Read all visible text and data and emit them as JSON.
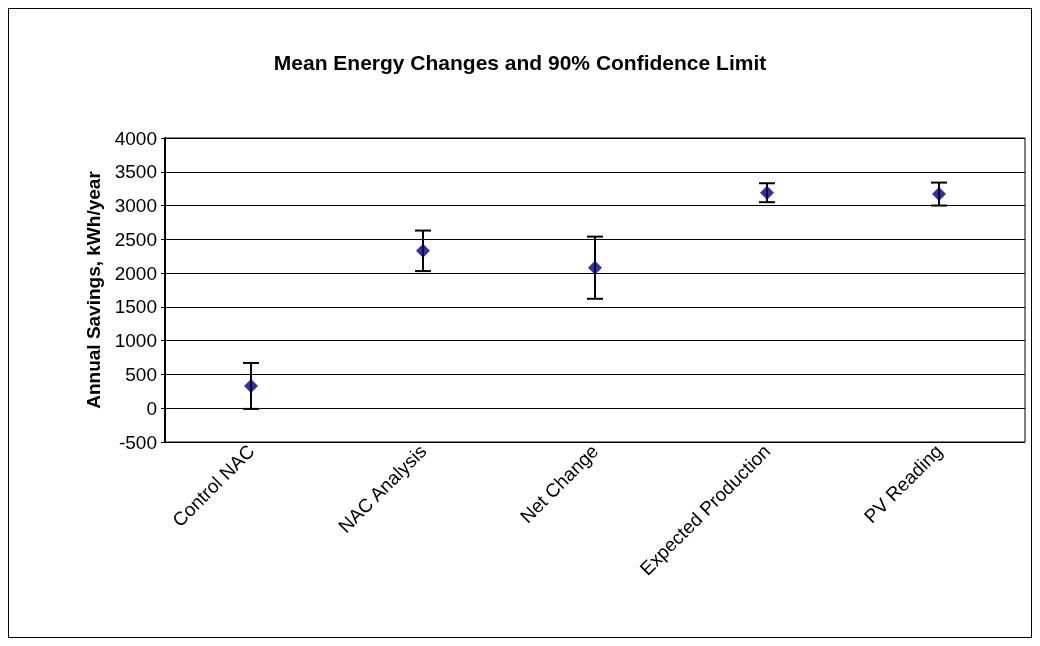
{
  "chart_data": {
    "type": "scatter",
    "title": "Mean Energy Changes and 90% Confidence Limit",
    "ylabel": "Annual Savings, kWh/year",
    "categories": [
      "Control NAC",
      "NAC Analysis",
      "Net Change",
      "Expected Production",
      "PV Reading"
    ],
    "series": [
      {
        "color": "#000080",
        "values": [
          330,
          2330,
          2080,
          3190,
          3170
        ],
        "errors": [
          340,
          300,
          460,
          140,
          170
        ]
      }
    ],
    "ylim": [
      -500,
      4000
    ],
    "yticks": [
      -500,
      0,
      500,
      1000,
      1500,
      2000,
      2500,
      3000,
      3500,
      4000
    ],
    "grid": "y",
    "marker": "diamond"
  }
}
